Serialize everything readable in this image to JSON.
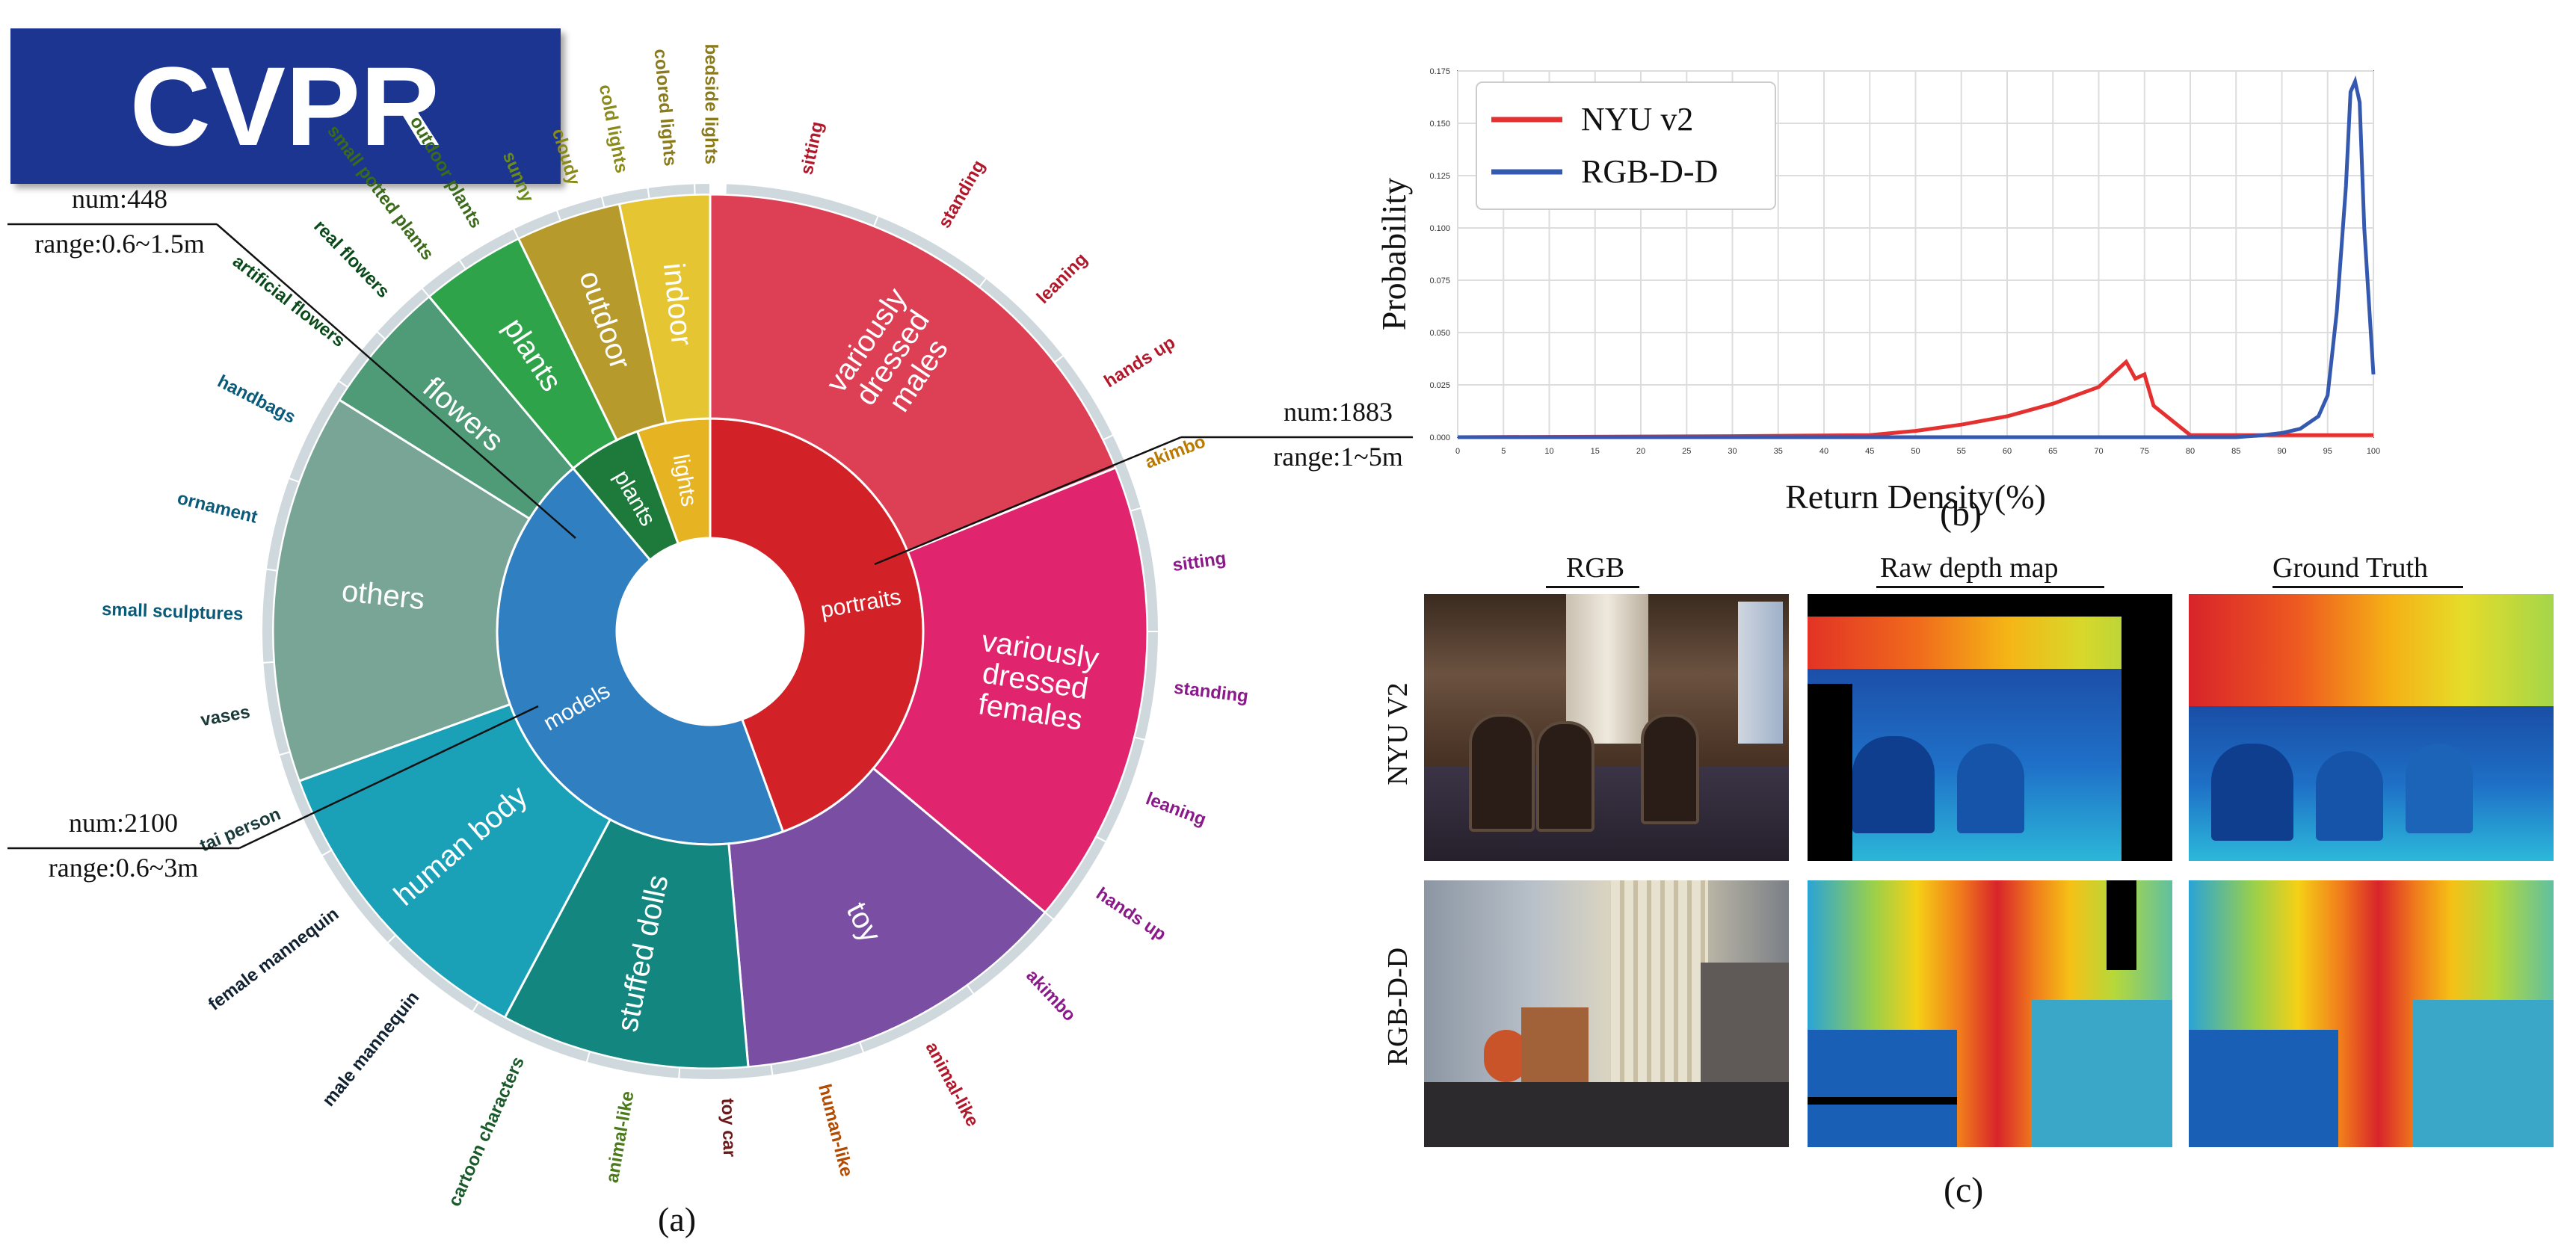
{
  "badge": "CVPR",
  "panel_a": {
    "caption": "(a)",
    "inner": [
      {
        "label": "portraits",
        "color": "#d32128",
        "start": 0,
        "end": 160
      },
      {
        "label": "models",
        "color": "#2f7fc1",
        "start": 160,
        "end": 320
      },
      {
        "label": "plants",
        "color": "#1d7a3a",
        "start": 320,
        "end": 340
      },
      {
        "label": "lights",
        "color": "#e6b422",
        "start": 340,
        "end": 360
      }
    ],
    "middle": [
      {
        "label": "variously dressed males",
        "color": "#dd3f54",
        "start": 0,
        "end": 68
      },
      {
        "label": "variously dressed females",
        "color": "#e0256e",
        "start": 68,
        "end": 130
      },
      {
        "label": "toy",
        "color": "#7a4fa3",
        "start": 130,
        "end": 175
      },
      {
        "label": "stuffed dolls",
        "color": "#13877f",
        "start": 175,
        "end": 208
      },
      {
        "label": "human body",
        "color": "#1aa1b7",
        "start": 208,
        "end": 250
      },
      {
        "label": "others",
        "color": "#79a597",
        "start": 250,
        "end": 302
      },
      {
        "label": "flowers",
        "color": "#4f9a77",
        "start": 302,
        "end": 320
      },
      {
        "label": "plants",
        "color": "#2ea34a",
        "start": 320,
        "end": 334
      },
      {
        "label": "outdoor",
        "color": "#b79a2c",
        "start": 334,
        "end": 348
      },
      {
        "label": "indoor",
        "color": "#e6c532",
        "start": 348,
        "end": 360
      }
    ],
    "outer": [
      {
        "label": "sitting",
        "start": 2
      },
      {
        "label": "standing",
        "start": 22
      },
      {
        "label": "leaning",
        "start": 38
      },
      {
        "label": "hands up",
        "start": 52
      },
      {
        "label": "akimbo",
        "start": 64
      },
      {
        "label": "sitting",
        "start": 74
      },
      {
        "label": "standing",
        "start": 90
      },
      {
        "label": "leaning",
        "start": 104
      },
      {
        "label": "hands up",
        "start": 118
      },
      {
        "label": "akimbo",
        "start": 130
      },
      {
        "label": "animal-like",
        "start": 144
      },
      {
        "label": "human-like",
        "start": 160
      },
      {
        "label": "toy car",
        "start": 172
      },
      {
        "label": "animal-like",
        "start": 184
      },
      {
        "label": "cartoon characters",
        "start": 196
      },
      {
        "label": "male mannequin",
        "start": 212
      },
      {
        "label": "female mannequin",
        "start": 226
      },
      {
        "label": "tai person",
        "start": 240
      },
      {
        "label": "vases",
        "start": 254
      },
      {
        "label": "small sculptures",
        "start": 266
      },
      {
        "label": "ornament",
        "start": 278
      },
      {
        "label": "handbags",
        "start": 290
      },
      {
        "label": "artificial flowers",
        "start": 304
      },
      {
        "label": "real flowers",
        "start": 312
      },
      {
        "label": "small potted plants",
        "start": 320
      },
      {
        "label": "outdoor plants",
        "start": 326
      },
      {
        "label": "sunny",
        "start": 334
      },
      {
        "label": "cloudy",
        "start": 340
      },
      {
        "label": "cold lights",
        "start": 346
      },
      {
        "label": "colored lights",
        "start": 352
      },
      {
        "label": "bedside lights",
        "start": 358
      }
    ],
    "annotations": [
      {
        "num": "num:448",
        "range": "range:0.6~1.5m"
      },
      {
        "num": "num:1883",
        "range": "range:1~5m"
      },
      {
        "num": "num:2100",
        "range": "range:0.6~3m"
      }
    ]
  },
  "panel_b": {
    "caption": "(b)",
    "chart_data": {
      "type": "line",
      "xlabel": "Return Density(%)",
      "ylabel": "Probability",
      "xlim": [
        0,
        100
      ],
      "ylim": [
        0,
        0.175
      ],
      "yticks": [
        "0.000",
        "0.025",
        "0.050",
        "0.075",
        "0.100",
        "0.125",
        "0.150",
        "0.175"
      ],
      "xticks": [
        "0",
        "5",
        "10",
        "15",
        "20",
        "25",
        "30",
        "35",
        "40",
        "45",
        "50",
        "55",
        "60",
        "65",
        "70",
        "75",
        "80",
        "85",
        "90",
        "95",
        "100"
      ],
      "grid": true,
      "legend": "top-left",
      "series": [
        {
          "name": "NYU v2",
          "color": "#e53030",
          "x": [
            0,
            30,
            45,
            50,
            55,
            60,
            65,
            70,
            72,
            73,
            74,
            75,
            76,
            80,
            100
          ],
          "y": [
            0.0,
            0.0005,
            0.001,
            0.003,
            0.006,
            0.01,
            0.016,
            0.024,
            0.032,
            0.036,
            0.028,
            0.03,
            0.015,
            0.001,
            0.001
          ]
        },
        {
          "name": "RGB-D-D",
          "color": "#3659b0",
          "x": [
            0,
            85,
            88,
            90,
            92,
            94,
            95,
            96,
            97,
            97.5,
            98,
            98.5,
            99,
            100
          ],
          "y": [
            0.0,
            0.0,
            0.001,
            0.002,
            0.004,
            0.01,
            0.02,
            0.06,
            0.12,
            0.165,
            0.17,
            0.16,
            0.1,
            0.03
          ]
        }
      ]
    }
  },
  "panel_c": {
    "caption": "(c)",
    "columns": [
      "RGB",
      "Raw depth map",
      "Ground Truth"
    ],
    "rows": [
      "NYU V2",
      "RGB-D-D"
    ]
  }
}
